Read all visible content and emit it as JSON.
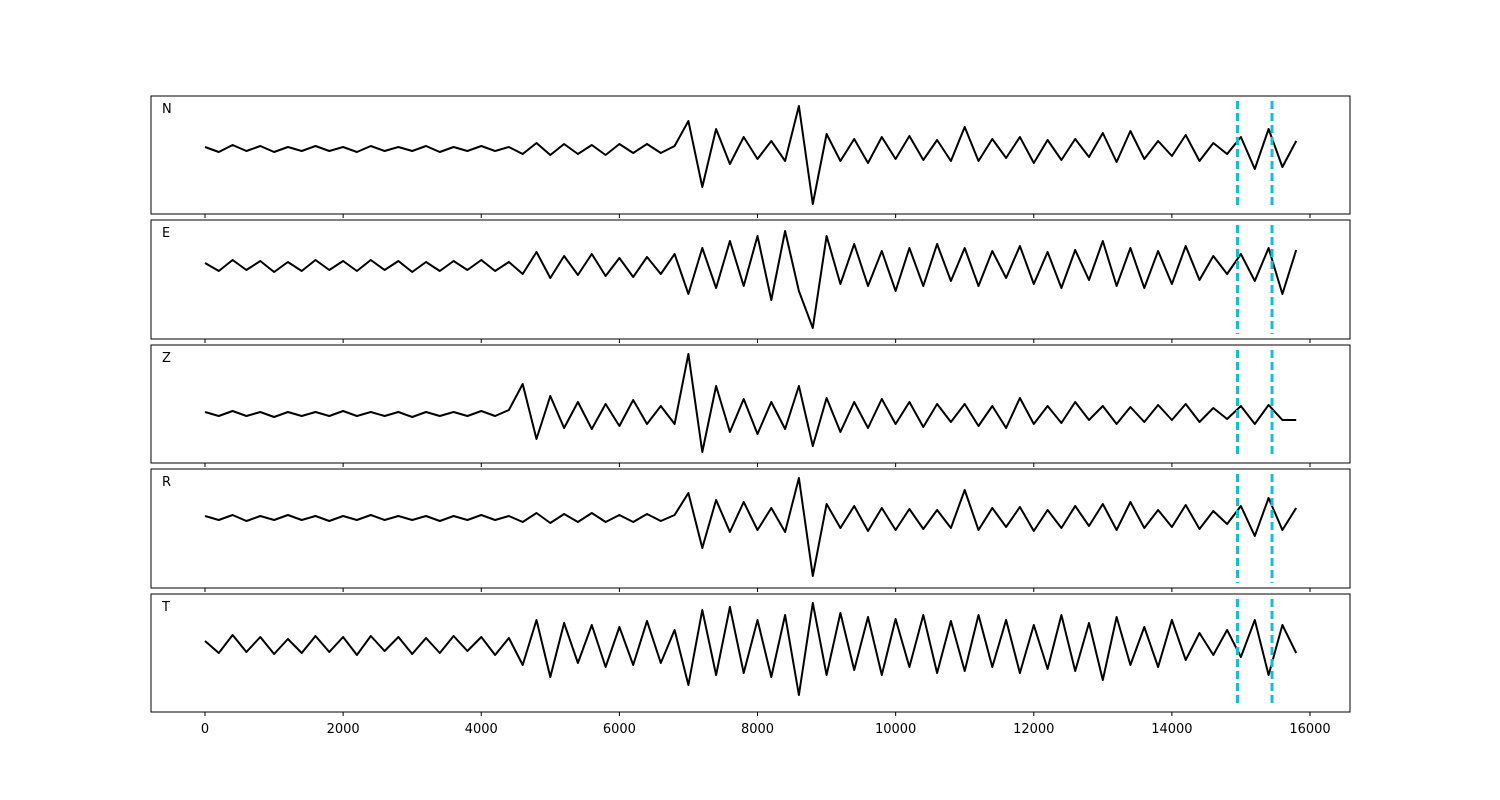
{
  "chart_data": {
    "type": "line",
    "x": [
      0,
      200,
      400,
      600,
      800,
      1000,
      1200,
      1400,
      1600,
      1800,
      2000,
      2200,
      2400,
      2600,
      2800,
      3000,
      3200,
      3400,
      3600,
      3800,
      4000,
      4200,
      4400,
      4600,
      4800,
      5000,
      5200,
      5400,
      5600,
      5800,
      6000,
      6200,
      6400,
      6600,
      6800,
      7000,
      7200,
      7400,
      7600,
      7800,
      8000,
      8200,
      8400,
      8600,
      8800,
      9000,
      9200,
      9400,
      9600,
      9800,
      10000,
      10200,
      10400,
      10600,
      10800,
      11000,
      11200,
      11400,
      11600,
      11800,
      12000,
      12200,
      12400,
      12600,
      12800,
      13000,
      13200,
      13400,
      13600,
      13800,
      14000,
      14200,
      14400,
      14600,
      14800,
      15000,
      15200,
      15400,
      15600,
      15800
    ],
    "xlim": [
      -782,
      16579
    ],
    "xticks": [
      0,
      2000,
      4000,
      6000,
      8000,
      10000,
      12000,
      14000,
      16000
    ],
    "vlines": [
      14950,
      15450
    ],
    "vline_color": "#17becf",
    "series": [
      {
        "name": "N",
        "color": "#000000",
        "ylim": [
          -65,
          53
        ],
        "values": [
          2,
          -3,
          4,
          -2,
          3,
          -3,
          2,
          -2,
          3,
          -2,
          2,
          -3,
          3,
          -2,
          2,
          -2,
          3,
          -3,
          2,
          -2,
          3,
          -2,
          2,
          -5,
          6,
          -6,
          5,
          -5,
          4,
          -6,
          5,
          -4,
          5,
          -4,
          3,
          28,
          -38,
          20,
          -15,
          12,
          -10,
          8,
          -12,
          43,
          -55,
          15,
          -12,
          10,
          -14,
          12,
          -10,
          13,
          -11,
          9,
          -12,
          22,
          -12,
          10,
          -9,
          12,
          -14,
          9,
          -11,
          10,
          -8,
          16,
          -13,
          18,
          -10,
          8,
          -7,
          14,
          -12,
          6,
          -5,
          12,
          -20,
          20,
          -18,
          8
        ]
      },
      {
        "name": "E",
        "color": "#000000",
        "ylim": [
          -73,
          46
        ],
        "values": [
          3,
          -5,
          6,
          -4,
          5,
          -6,
          4,
          -5,
          6,
          -4,
          5,
          -5,
          6,
          -4,
          5,
          -6,
          4,
          -5,
          5,
          -4,
          6,
          -5,
          4,
          -8,
          14,
          -12,
          10,
          -9,
          12,
          -10,
          8,
          -11,
          9,
          -8,
          12,
          -28,
          18,
          -22,
          25,
          -20,
          30,
          -34,
          35,
          -25,
          -62,
          30,
          -18,
          22,
          -20,
          15,
          -25,
          18,
          -20,
          22,
          -15,
          18,
          -20,
          15,
          -12,
          20,
          -18,
          14,
          -22,
          16,
          -14,
          25,
          -20,
          18,
          -22,
          15,
          -18,
          20,
          -14,
          10,
          -8,
          12,
          -15,
          18,
          -28,
          16
        ]
      },
      {
        "name": "Z",
        "color": "#000000",
        "ylim": [
          -49,
          69
        ],
        "values": [
          2,
          -2,
          3,
          -2,
          2,
          -3,
          2,
          -2,
          2,
          -2,
          3,
          -2,
          2,
          -2,
          2,
          -3,
          2,
          -2,
          2,
          -2,
          3,
          -2,
          4,
          30,
          -25,
          18,
          -14,
          12,
          -15,
          10,
          -12,
          14,
          -10,
          8,
          -10,
          60,
          -38,
          28,
          -18,
          15,
          -20,
          12,
          -15,
          28,
          -32,
          16,
          -18,
          12,
          -14,
          15,
          -10,
          12,
          -13,
          10,
          -8,
          10,
          -12,
          8,
          -14,
          16,
          -10,
          8,
          -9,
          12,
          -6,
          8,
          -10,
          7,
          -8,
          9,
          -6,
          10,
          -8,
          6,
          -5,
          8,
          -10,
          9,
          -6,
          -6
        ]
      },
      {
        "name": "R",
        "color": "#000000",
        "ylim": [
          -70,
          49
        ],
        "values": [
          2,
          -2,
          3,
          -3,
          2,
          -2,
          3,
          -2,
          2,
          -3,
          2,
          -2,
          3,
          -2,
          2,
          -2,
          2,
          -3,
          2,
          -2,
          3,
          -2,
          2,
          -4,
          5,
          -5,
          4,
          -4,
          5,
          -4,
          3,
          -4,
          4,
          -3,
          3,
          25,
          -30,
          18,
          -14,
          16,
          -12,
          10,
          -14,
          40,
          -58,
          14,
          -10,
          12,
          -13,
          10,
          -12,
          9,
          -11,
          8,
          -10,
          28,
          -12,
          10,
          -9,
          11,
          -13,
          8,
          -10,
          12,
          -8,
          14,
          -12,
          16,
          -10,
          8,
          -9,
          13,
          -11,
          7,
          -6,
          12,
          -18,
          20,
          -12,
          10
        ]
      },
      {
        "name": "T",
        "color": "#000000",
        "ylim": [
          -67,
          51
        ],
        "values": [
          4,
          -8,
          10,
          -7,
          8,
          -9,
          6,
          -8,
          9,
          -7,
          8,
          -10,
          9,
          -6,
          8,
          -9,
          7,
          -8,
          9,
          -6,
          8,
          -10,
          7,
          -20,
          25,
          -32,
          22,
          -18,
          20,
          -22,
          18,
          -20,
          24,
          -18,
          15,
          -40,
          35,
          -30,
          38,
          -28,
          25,
          -32,
          30,
          -50,
          42,
          -30,
          32,
          -25,
          28,
          -30,
          26,
          -22,
          30,
          -28,
          24,
          -26,
          30,
          -22,
          25,
          -28,
          20,
          -24,
          30,
          -26,
          22,
          -35,
          28,
          -20,
          18,
          -22,
          25,
          -15,
          12,
          -10,
          15,
          -12,
          25,
          -30,
          20,
          -8
        ]
      }
    ]
  }
}
